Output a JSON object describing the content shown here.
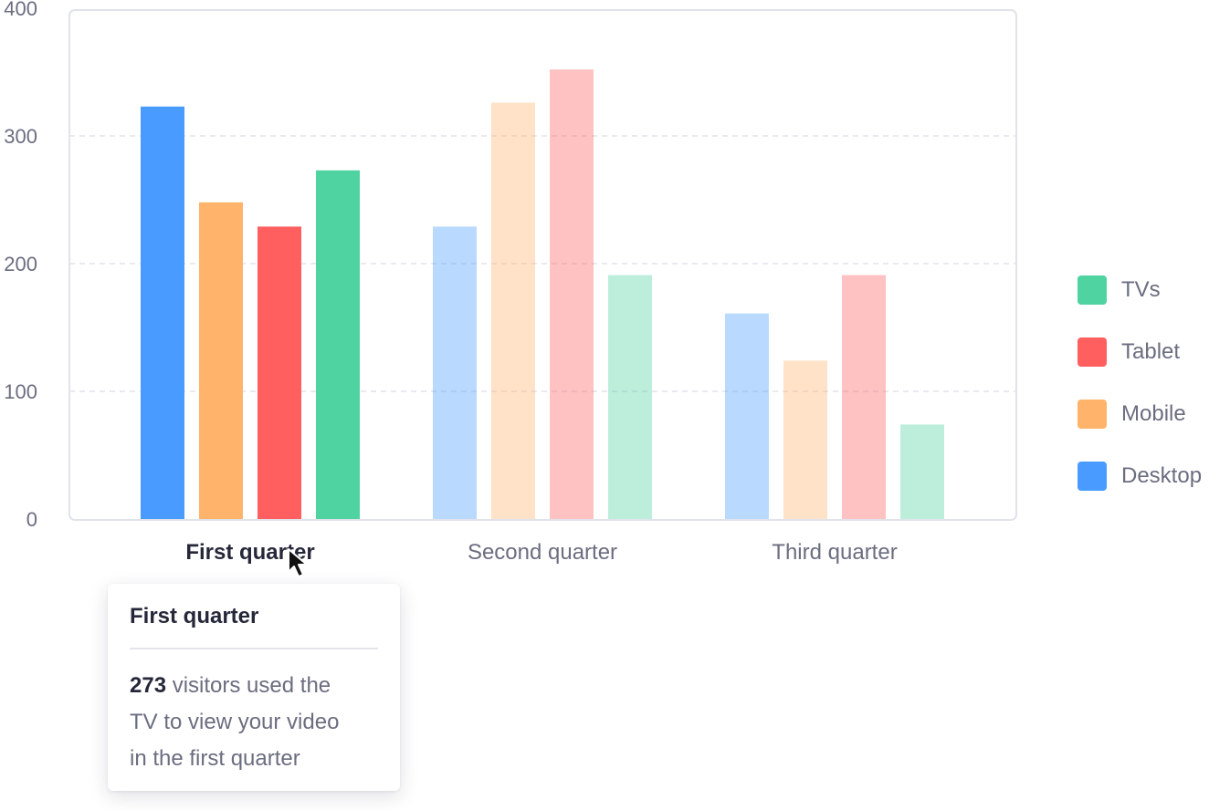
{
  "chart_data": {
    "type": "bar",
    "categories": [
      "First quarter",
      "Second quarter",
      "Third quarter"
    ],
    "series": [
      {
        "name": "Desktop",
        "color": "#4a9bff",
        "values": [
          323,
          229,
          161
        ]
      },
      {
        "name": "Mobile",
        "color": "#ffb36b",
        "values": [
          248,
          326,
          124
        ]
      },
      {
        "name": "Tablet",
        "color": "#ff5f5f",
        "values": [
          229,
          352,
          191
        ]
      },
      {
        "name": "TVs",
        "color": "#4fd3a0",
        "values": [
          273,
          191,
          74
        ]
      }
    ],
    "yticks": [
      "0",
      "100",
      "200",
      "300",
      "400"
    ],
    "ylim": [
      0,
      400
    ],
    "grid": true,
    "legend_position": "right",
    "active_category": "First quarter"
  },
  "legend": {
    "items": [
      {
        "label": "TVs",
        "color": "#4fd3a0"
      },
      {
        "label": "Tablet",
        "color": "#ff5f5f"
      },
      {
        "label": "Mobile",
        "color": "#ffb36b"
      },
      {
        "label": "Desktop",
        "color": "#4a9bff"
      }
    ]
  },
  "tooltip": {
    "title": "First quarter",
    "value": "273",
    "text_line1": "visitors used the",
    "text_line2": "TV to view your video",
    "text_line3": "in the first quarter"
  }
}
